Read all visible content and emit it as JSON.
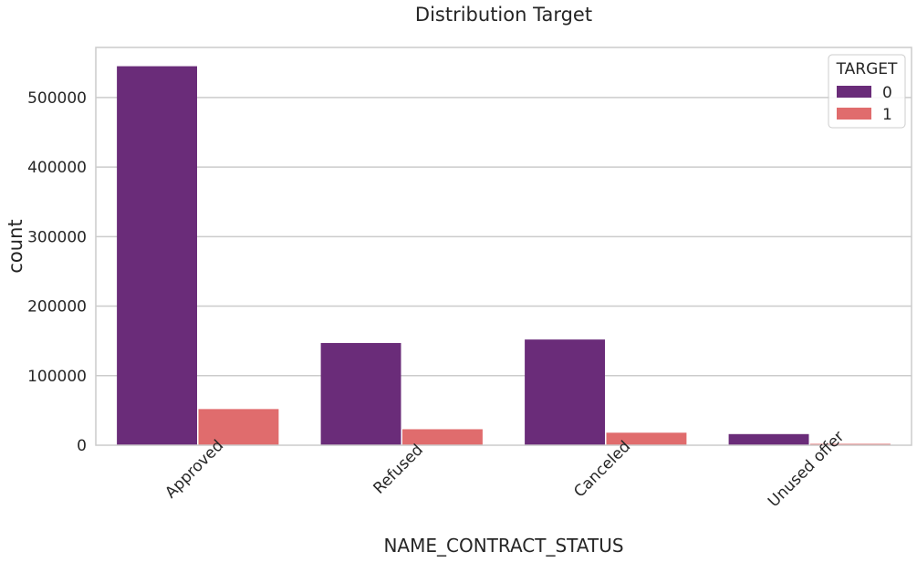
{
  "chart_data": {
    "type": "bar",
    "title": "Distribution Target",
    "xlabel": "NAME_CONTRACT_STATUS",
    "ylabel": "count",
    "categories": [
      "Approved",
      "Refused",
      "Canceled",
      "Unused offer"
    ],
    "series": [
      {
        "name": "0",
        "color": "#6a2c79",
        "values": [
          545000,
          147000,
          152000,
          16000
        ]
      },
      {
        "name": "1",
        "color": "#e06c6d",
        "values": [
          52000,
          23000,
          18000,
          2000
        ]
      }
    ],
    "ylim": [
      0,
      572000
    ],
    "yticks": [
      0,
      100000,
      200000,
      300000,
      400000,
      500000
    ],
    "grid": true,
    "legend": {
      "title": "TARGET",
      "placement": "top-right"
    }
  }
}
